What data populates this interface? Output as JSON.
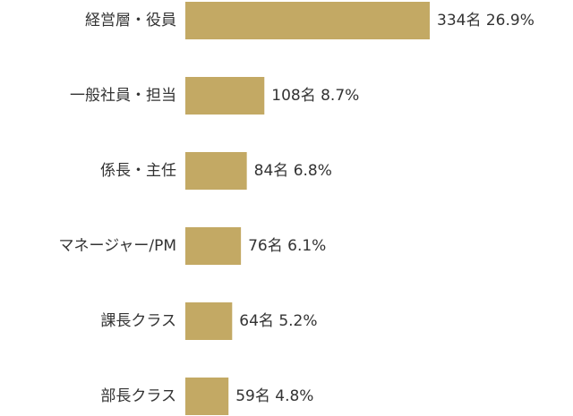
{
  "chart_data": {
    "type": "bar",
    "orientation": "horizontal",
    "categories": [
      "経営層・役員",
      "一般社員・担当",
      "係長・主任",
      "マネージャー/PM",
      "課長クラス",
      "部長クラス"
    ],
    "values": [
      334,
      108,
      84,
      76,
      64,
      59
    ],
    "value_labels": [
      "334名 26.9%",
      "108名 8.7%",
      "84名 6.8%",
      "76名 6.1%",
      "64名 5.2%",
      "59名 4.8%"
    ],
    "color": "#c3a964"
  }
}
